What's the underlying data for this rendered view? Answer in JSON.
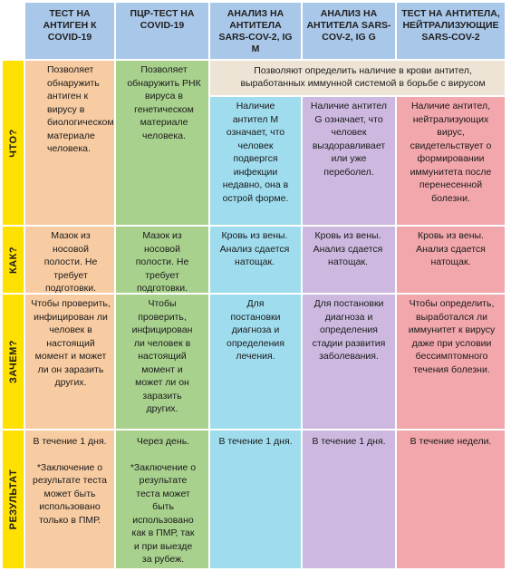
{
  "headers": [
    "",
    "ТЕСТ НА АНТИГЕН К COVID-19",
    "ПЦР-ТЕСТ НА COVID-19",
    "АНАЛИЗ НА АНТИТЕЛА SARS-COV-2, IG M",
    "АНАЛИЗ НА АНТИТЕЛА SARS-COV-2, IG G",
    "ТЕСТ НА АНТИТЕЛА, НЕЙТРАЛИЗУЮЩИЕ SARS-COV-2"
  ],
  "rows": {
    "what": {
      "label": "ЧТО?",
      "antigen": "Позволяет обнаружить антиген к вирусу в биологическом материале человека.",
      "pcr": "Позволяет обнаружить РНК вируса в генетическом материале человека.",
      "merged": "Позволяют определить наличие в крови антител, выработанных иммунной системой в борьбе с вирусом",
      "igm": "Наличие антител M означает, что человек подвергся инфекции недавно, она в острой форме.",
      "igg": "Наличие антител G означает, что человек выздоравливает или уже переболел.",
      "neutral": "Наличие антител, нейтрализующих вирус, свидетельствует о формировании иммунитета после перенесенной болезни."
    },
    "how": {
      "label": "КАК?",
      "antigen": "Мазок из носовой полости. Не требует подготовки.",
      "pcr": "Мазок из носовой полости. Не требует подготовки.",
      "igm": "Кровь из вены. Анализ сдается натощак.",
      "igg": "Кровь из вены. Анализ сдается натощак.",
      "neutral": "Кровь из вены. Анализ сдается натощак."
    },
    "why": {
      "label": "ЗАЧЕМ?",
      "antigen": "Чтобы проверить, инфицирован ли человек в настоящий момент и может ли он заразить других.",
      "pcr": "Чтобы проверить, инфицирован ли человек в настоящий момент и может ли он заразить других.",
      "igm": "Для постановки диагноза и определения лечения.",
      "igg": "Для постановки диагноза и определения стадии развития заболевания.",
      "neutral": "Чтобы определить, выработался ли иммунитет к вирусу даже при условии бессимптомного течения болезни."
    },
    "result": {
      "label": "РЕЗУЛЬТАТ",
      "antigen_time": "В течение 1 дня.",
      "antigen_note": "*Заключение о результате теста может быть использовано только в ПМР.",
      "pcr_time": "Через день.",
      "pcr_note": "*Заключение о результате теста может быть использовано как в ПМР, так и при выезде за рубеж.",
      "igm": "В течение 1 дня.",
      "igg": "В течение 1 дня.",
      "neutral": "В течение недели."
    }
  },
  "colors": {
    "header": "#a9c7e8",
    "row_label": "#ffe100",
    "antigen": "#f8cca2",
    "pcr": "#a9d18e",
    "igm": "#9fdcee",
    "igg": "#cdb9e0",
    "neutral": "#f2a7ac",
    "merged": "#ede4d6"
  }
}
